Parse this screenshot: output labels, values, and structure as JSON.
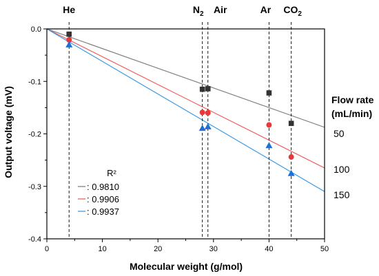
{
  "chart_data": {
    "type": "scatter",
    "xlabel": "Molecular weight (g/mol)",
    "ylabel": "Output voltage (mV)",
    "xlim": [
      0,
      50
    ],
    "ylim": [
      -0.4,
      0.0
    ],
    "x_ticks": [
      0,
      10,
      20,
      30,
      40,
      50
    ],
    "y_ticks": [
      0.0,
      -0.1,
      -0.2,
      -0.3,
      -0.4
    ],
    "x_tick_labels": [
      "0",
      "10",
      "20",
      "30",
      "40",
      "50"
    ],
    "y_tick_labels": [
      "0.0",
      "-0.1",
      "-0.2",
      "-0.3",
      "-0.4"
    ],
    "grid": false,
    "gases": [
      {
        "label": "He",
        "subscript": "",
        "x": 4
      },
      {
        "label": "N",
        "subscript": "2",
        "x": 28
      },
      {
        "label": "Air",
        "subscript": "",
        "x": 29
      },
      {
        "label": "Ar",
        "subscript": "",
        "x": 40
      },
      {
        "label": "CO",
        "subscript": "2",
        "x": 44
      }
    ],
    "flow_rate_title_line1": "Flow rate",
    "flow_rate_title_line2": "(mL/min)",
    "legend_title": "R²",
    "series": [
      {
        "name": "50",
        "marker": "square",
        "color": "#333333",
        "x": [
          4,
          28,
          29,
          40,
          44
        ],
        "y": [
          -0.01,
          -0.115,
          -0.114,
          -0.122,
          -0.18
        ],
        "fit_slope": -0.00375,
        "r2_label": ": 0.9810"
      },
      {
        "name": "100",
        "marker": "circle",
        "color": "#e8383b",
        "x": [
          4,
          28,
          29,
          40,
          44
        ],
        "y": [
          -0.021,
          -0.159,
          -0.16,
          -0.183,
          -0.244
        ],
        "fit_slope": -0.0053,
        "r2_label": ": 0.9906"
      },
      {
        "name": "150",
        "marker": "triangle",
        "color": "#1f6fd6",
        "x": [
          4,
          28,
          29,
          40,
          44
        ],
        "y": [
          -0.03,
          -0.189,
          -0.186,
          -0.222,
          -0.275
        ],
        "fit_slope": -0.0062,
        "r2_label": ": 0.9937"
      }
    ],
    "fit_colors": [
      "#808080",
      "#ee6060",
      "#3a9ae6"
    ]
  }
}
